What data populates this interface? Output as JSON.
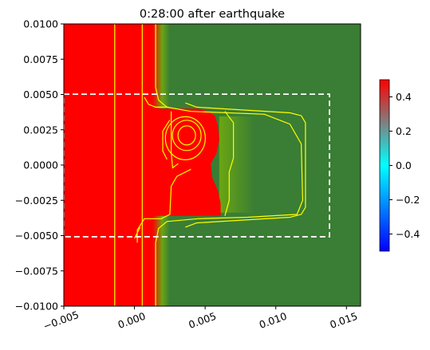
{
  "chart_data": {
    "type": "heatmap",
    "title": "0:28:00 after earthquake",
    "xlabel": "",
    "ylabel": "",
    "xlim": [
      -0.005,
      0.016
    ],
    "ylim": [
      -0.01,
      0.01
    ],
    "x_ticks": [
      -0.005,
      0.0,
      0.005,
      0.01,
      0.015
    ],
    "x_tick_labels": [
      "−0.005",
      "0.000",
      "0.005",
      "0.010",
      "0.015"
    ],
    "y_ticks": [
      0.01,
      0.0075,
      0.005,
      0.0025,
      0.0,
      -0.0025,
      -0.005,
      -0.0075,
      -0.01
    ],
    "y_tick_labels": [
      "0.0100",
      "0.0075",
      "0.0050",
      "0.0025",
      "0.0000",
      "−0.0025",
      "−0.0050",
      "−0.0075",
      "−0.0100"
    ],
    "grid": false,
    "colorbar": {
      "vmin": -0.5,
      "vmax": 0.5,
      "ticks": [
        0.4,
        0.2,
        0.0,
        -0.2,
        -0.4
      ],
      "tick_labels": [
        "0.4",
        "0.2",
        "0.0",
        "−0.2",
        "−0.4"
      ],
      "colormap": [
        "#0000ff",
        "#00ffff",
        "#ff0000"
      ]
    },
    "colors": {
      "high": "#ff0000",
      "background_low": "#3a7d34",
      "transition": "#6aa613",
      "contour": "#ffff00",
      "box": "#ffffff"
    },
    "dashed_box": {
      "x": [
        -0.005,
        0.0138
      ],
      "y": [
        -0.00508,
        0.00502
      ]
    },
    "regions": {
      "red_left_boundary_x": 0.0013,
      "red_bump": {
        "x_max": 0.006,
        "y": [
          -0.0036,
          0.0039
        ]
      },
      "transition_band_x": [
        0.0013,
        0.0025
      ],
      "island_transition_x": [
        0.006,
        0.0085
      ]
    },
    "contour_levels_approx": [
      -0.25,
      0.0,
      0.25
    ]
  }
}
